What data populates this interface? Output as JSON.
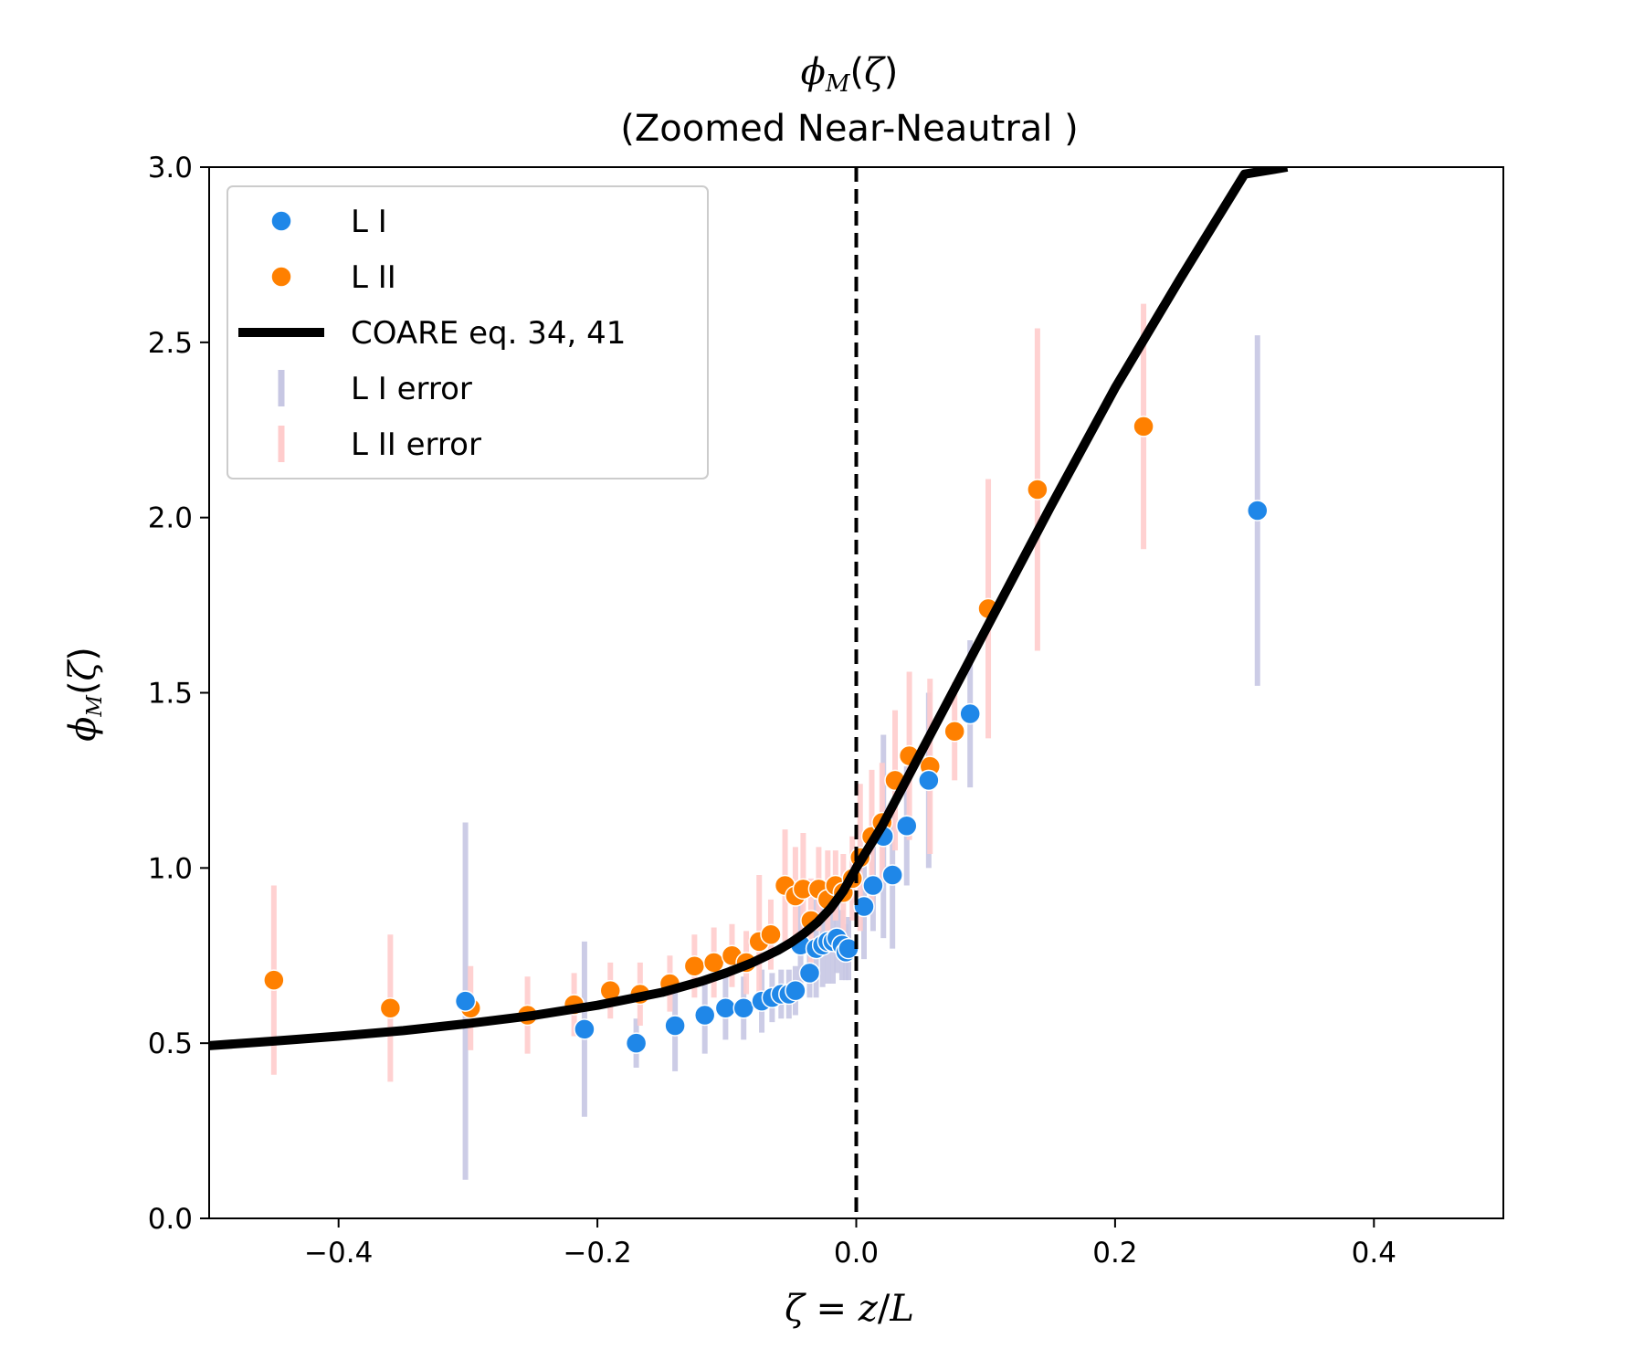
{
  "chart_data": {
    "type": "scatter",
    "title": "ϕ_M(ζ)",
    "subtitle": "(Zoomed Near-Neautral )",
    "xlabel": "ζ = z/L",
    "ylabel": "ϕ_M(ζ)",
    "xlim": [
      -0.5,
      0.5
    ],
    "ylim": [
      0.0,
      3.0
    ],
    "xticks": [
      -0.4,
      -0.2,
      0.0,
      0.2,
      0.4
    ],
    "xtick_labels": [
      "−0.4",
      "−0.2",
      "0.0",
      "0.2",
      "0.4"
    ],
    "yticks": [
      0.0,
      0.5,
      1.0,
      1.5,
      2.0,
      2.5,
      3.0
    ],
    "ytick_labels": [
      "0.0",
      "0.5",
      "1.0",
      "1.5",
      "2.0",
      "2.5",
      "3.0"
    ],
    "vline_x": 0.0,
    "legend_position": "upper-left",
    "colors": {
      "LI": "#1f87e8",
      "LII": "#ff8000",
      "LI_error": "#c7c7e3",
      "LII_error": "#ffcccc",
      "curve": "#000000"
    },
    "series": [
      {
        "name": "L I",
        "x": [
          -0.302,
          -0.21,
          -0.17,
          -0.14,
          -0.117,
          -0.101,
          -0.087,
          -0.073,
          -0.065,
          -0.058,
          -0.052,
          -0.047,
          -0.043,
          -0.036,
          -0.031,
          -0.026,
          -0.022,
          -0.018,
          -0.015,
          -0.011,
          -0.008,
          -0.006,
          0.006,
          0.013,
          0.021,
          0.028,
          0.039,
          0.056,
          0.088,
          0.31
        ],
        "y": [
          0.62,
          0.54,
          0.5,
          0.55,
          0.58,
          0.6,
          0.6,
          0.62,
          0.63,
          0.64,
          0.64,
          0.65,
          0.78,
          0.7,
          0.77,
          0.78,
          0.79,
          0.79,
          0.8,
          0.78,
          0.76,
          0.77,
          0.89,
          0.95,
          1.09,
          0.98,
          1.12,
          1.25,
          1.44,
          2.02
        ],
        "err": [
          0.51,
          0.25,
          0.07,
          0.13,
          0.11,
          0.09,
          0.09,
          0.09,
          0.07,
          0.07,
          0.07,
          0.07,
          0.12,
          0.07,
          0.14,
          0.12,
          0.12,
          0.12,
          0.1,
          0.1,
          0.08,
          0.09,
          0.15,
          0.13,
          0.29,
          0.21,
          0.17,
          0.25,
          0.21,
          0.5
        ]
      },
      {
        "name": "L II",
        "x": [
          -0.45,
          -0.36,
          -0.298,
          -0.254,
          -0.218,
          -0.19,
          -0.167,
          -0.144,
          -0.125,
          -0.11,
          -0.096,
          -0.085,
          -0.075,
          -0.066,
          -0.055,
          -0.047,
          -0.041,
          -0.035,
          -0.029,
          -0.022,
          -0.016,
          -0.01,
          -0.003,
          0.003,
          0.012,
          0.02,
          0.03,
          0.041,
          0.057,
          0.076,
          0.102,
          0.14,
          0.222
        ],
        "y": [
          0.68,
          0.6,
          0.6,
          0.58,
          0.61,
          0.65,
          0.64,
          0.67,
          0.72,
          0.73,
          0.75,
          0.73,
          0.79,
          0.81,
          0.95,
          0.92,
          0.94,
          0.85,
          0.94,
          0.91,
          0.95,
          0.93,
          0.97,
          1.03,
          1.09,
          1.13,
          1.25,
          1.32,
          1.29,
          1.39,
          1.74,
          2.08,
          2.26
        ]
      }
    ],
    "series_errors": [
      {
        "name": "L II error",
        "x": [
          -0.45,
          -0.36,
          -0.298,
          -0.254,
          -0.218,
          -0.19,
          -0.167,
          -0.144,
          -0.125,
          -0.11,
          -0.096,
          -0.085,
          -0.075,
          -0.066,
          -0.055,
          -0.047,
          -0.041,
          -0.035,
          -0.029,
          -0.022,
          -0.016,
          -0.01,
          -0.003,
          0.003,
          0.012,
          0.02,
          0.03,
          0.041,
          0.057,
          0.076,
          0.102,
          0.14,
          0.222
        ],
        "err": [
          0.27,
          0.21,
          0.12,
          0.11,
          0.09,
          0.08,
          0.09,
          0.08,
          0.09,
          0.1,
          0.09,
          0.09,
          0.19,
          0.1,
          0.16,
          0.14,
          0.16,
          0.12,
          0.12,
          0.14,
          0.1,
          0.11,
          0.12,
          0.21,
          0.19,
          0.17,
          0.2,
          0.24,
          0.25,
          0.14,
          0.37,
          0.46,
          0.35
        ]
      }
    ],
    "curve": {
      "name": "COARE eq. 34, 41",
      "x": [
        -0.5,
        -0.45,
        -0.4,
        -0.35,
        -0.3,
        -0.25,
        -0.2,
        -0.15,
        -0.12,
        -0.1,
        -0.08,
        -0.06,
        -0.05,
        -0.04,
        -0.03,
        -0.02,
        -0.01,
        0.0,
        0.01,
        0.02,
        0.03,
        0.05,
        0.08,
        0.1,
        0.15,
        0.2,
        0.25,
        0.3,
        0.333
      ],
      "y": [
        0.493,
        0.506,
        0.52,
        0.536,
        0.556,
        0.579,
        0.608,
        0.645,
        0.676,
        0.701,
        0.73,
        0.766,
        0.788,
        0.814,
        0.845,
        0.884,
        0.934,
        1.0,
        1.06,
        1.12,
        1.19,
        1.33,
        1.54,
        1.68,
        2.03,
        2.37,
        2.68,
        2.98,
        3.0
      ]
    },
    "legend": [
      {
        "label": "L I",
        "kind": "marker",
        "color": "#1f87e8"
      },
      {
        "label": "L II",
        "kind": "marker",
        "color": "#ff8000"
      },
      {
        "label": "COARE eq. 34, 41",
        "kind": "line",
        "color": "#000000"
      },
      {
        "label": "L I error",
        "kind": "errbar",
        "color": "#c7c7e3"
      },
      {
        "label": "L II error",
        "kind": "errbar",
        "color": "#ffcccc"
      }
    ]
  }
}
